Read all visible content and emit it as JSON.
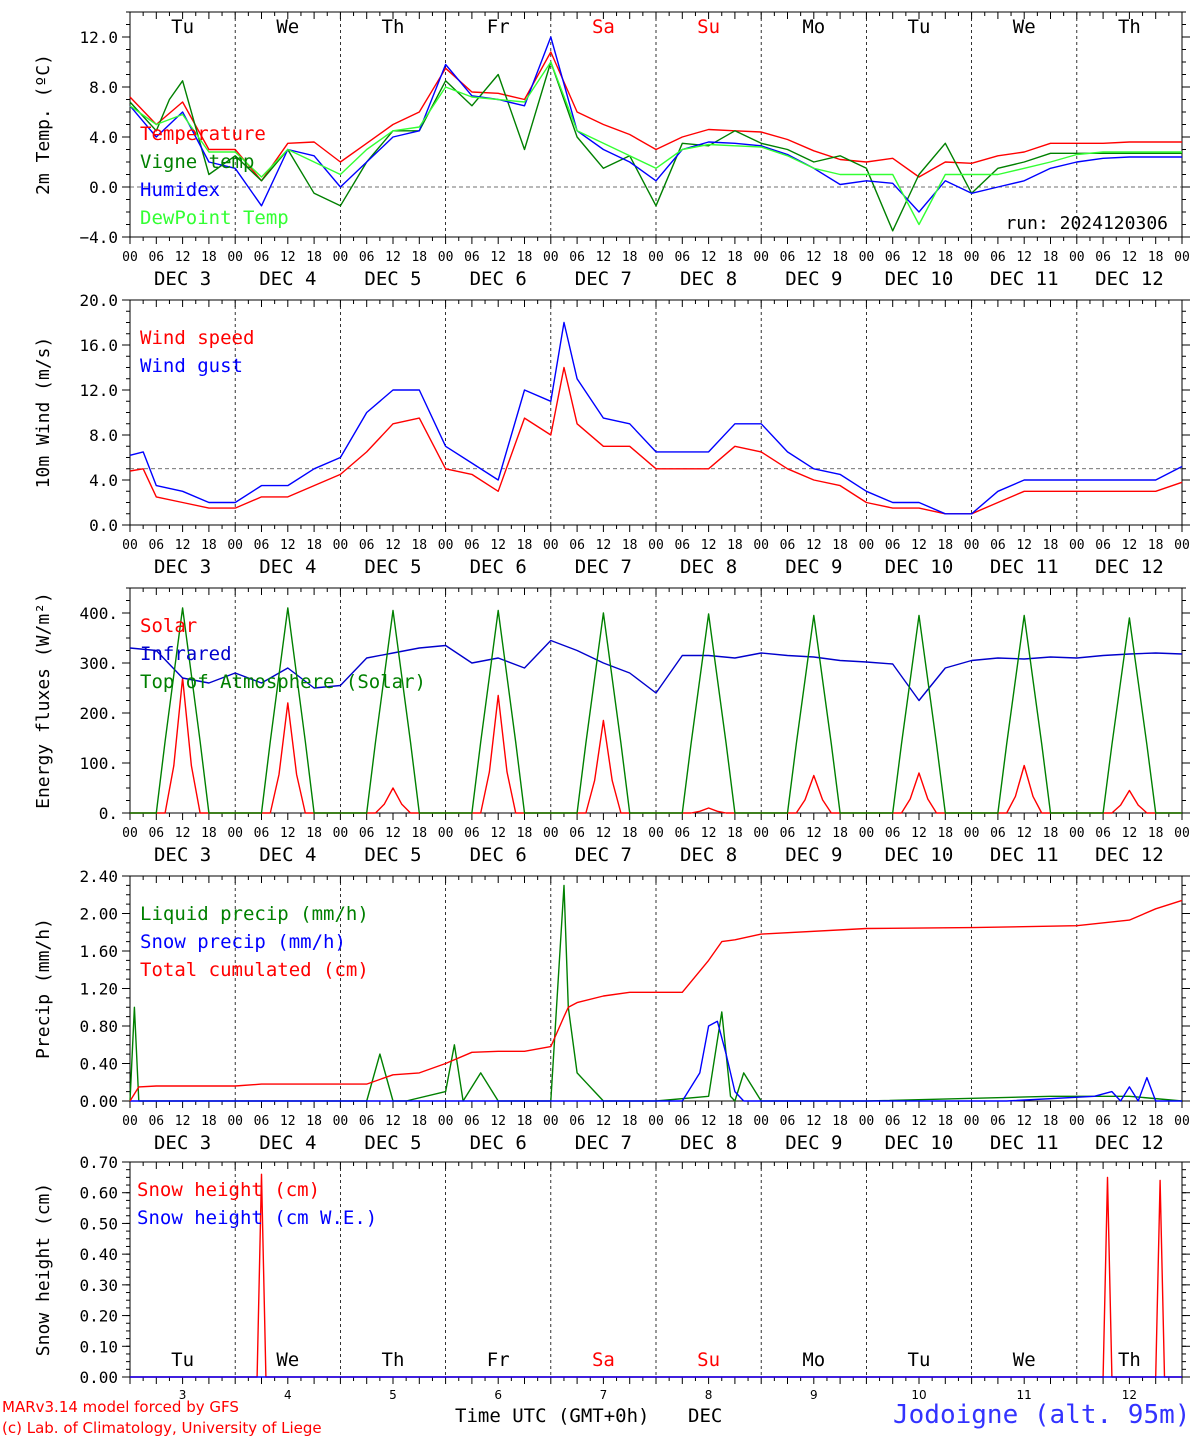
{
  "chart_data": [
    {
      "type": "line",
      "ylabel": "2m Temp. (ºC)",
      "ylim": [
        -4,
        14
      ],
      "yticks": [
        -4,
        0,
        4,
        8,
        12
      ],
      "ytick_labels": [
        "−4.0",
        "0.0",
        "4.0",
        "8.0",
        "12.0"
      ],
      "ref_line": 0,
      "x_unit": "hours since DEC 3 00 UTC",
      "weekday_labels_top": true,
      "annotation": "run: 2024120306",
      "series": [
        {
          "name": "Temperature",
          "color": "#ff0000",
          "x": [
            0,
            6,
            12,
            18,
            24,
            30,
            36,
            42,
            48,
            54,
            60,
            66,
            72,
            78,
            84,
            90,
            96,
            102,
            108,
            114,
            120,
            126,
            132,
            138,
            144,
            150,
            156,
            162,
            168,
            174,
            180,
            186,
            192,
            198,
            204,
            210,
            216,
            222,
            228,
            234,
            240
          ],
          "y": [
            7.2,
            5.0,
            6.8,
            3.0,
            3.0,
            0.5,
            3.5,
            3.6,
            2.0,
            3.5,
            5.0,
            6.0,
            9.5,
            7.6,
            7.5,
            7.0,
            10.8,
            6.0,
            5.0,
            4.2,
            3.0,
            4.0,
            4.6,
            4.5,
            4.4,
            3.8,
            2.9,
            2.2,
            2.0,
            2.3,
            0.8,
            2.0,
            1.9,
            2.5,
            2.8,
            3.5,
            3.5,
            3.5,
            3.6,
            3.6,
            3.6
          ]
        },
        {
          "name": "Vigne temp",
          "color": "#008000",
          "x": [
            0,
            6,
            9,
            12,
            18,
            24,
            30,
            36,
            42,
            48,
            54,
            60,
            66,
            72,
            78,
            84,
            90,
            96,
            102,
            108,
            114,
            120,
            126,
            132,
            138,
            144,
            150,
            156,
            162,
            168,
            174,
            180,
            186,
            192,
            198,
            204,
            210,
            216,
            222,
            228,
            234,
            240
          ],
          "y": [
            6.8,
            4.5,
            7.0,
            8.5,
            1.0,
            2.5,
            0.5,
            3.0,
            -0.5,
            -1.5,
            2.0,
            4.5,
            4.5,
            8.5,
            6.5,
            9.0,
            3.0,
            10.0,
            4.0,
            1.5,
            2.5,
            -1.5,
            3.5,
            3.3,
            4.5,
            3.5,
            3.0,
            2.0,
            2.5,
            1.5,
            -3.5,
            1.0,
            3.5,
            -0.5,
            1.5,
            2.0,
            2.7,
            2.7,
            2.7,
            2.7,
            2.7,
            2.7
          ]
        },
        {
          "name": "Humidex",
          "color": "#0000ff",
          "x": [
            0,
            6,
            12,
            18,
            24,
            30,
            36,
            42,
            48,
            54,
            60,
            66,
            72,
            78,
            84,
            90,
            96,
            102,
            108,
            114,
            120,
            126,
            132,
            138,
            144,
            150,
            156,
            162,
            168,
            174,
            180,
            186,
            192,
            198,
            204,
            210,
            216,
            222,
            228,
            234,
            240
          ],
          "y": [
            6.5,
            4.0,
            6.0,
            2.0,
            1.5,
            -1.5,
            3.0,
            2.5,
            0.0,
            2.0,
            4.0,
            4.5,
            9.8,
            7.3,
            7.0,
            6.5,
            12.0,
            4.5,
            3.0,
            2.0,
            0.5,
            3.0,
            3.6,
            3.5,
            3.3,
            2.6,
            1.5,
            0.2,
            0.5,
            0.3,
            -2.0,
            0.5,
            -0.5,
            0.0,
            0.5,
            1.5,
            2.0,
            2.3,
            2.4,
            2.4,
            2.4
          ]
        },
        {
          "name": "DewPoint Temp",
          "color": "#33ff33",
          "x": [
            0,
            6,
            12,
            18,
            24,
            30,
            36,
            42,
            48,
            54,
            60,
            66,
            72,
            78,
            84,
            90,
            96,
            102,
            108,
            114,
            120,
            126,
            132,
            138,
            144,
            150,
            156,
            162,
            168,
            174,
            180,
            186,
            192,
            198,
            204,
            210,
            216,
            222,
            228,
            234,
            240
          ],
          "y": [
            6.5,
            5.0,
            5.8,
            2.8,
            2.8,
            0.8,
            3.0,
            2.0,
            1.0,
            3.0,
            4.5,
            4.8,
            8.0,
            7.2,
            7.0,
            6.8,
            10.0,
            4.5,
            3.5,
            2.5,
            1.5,
            3.0,
            3.4,
            3.3,
            3.2,
            2.5,
            1.5,
            1.0,
            1.0,
            1.0,
            -3.0,
            1.0,
            1.0,
            1.0,
            1.5,
            2.0,
            2.6,
            2.8,
            2.8,
            2.8,
            2.8
          ]
        }
      ]
    },
    {
      "type": "line",
      "ylabel": "10m Wind (m/s)",
      "ylim": [
        0,
        20
      ],
      "yticks": [
        0,
        4,
        8,
        12,
        16,
        20
      ],
      "ytick_labels": [
        "0.0",
        "4.0",
        "8.0",
        "12.0",
        "16.0",
        "20.0"
      ],
      "ref_line": 5,
      "series": [
        {
          "name": "Wind speed",
          "color": "#ff0000",
          "x": [
            0,
            3,
            6,
            12,
            18,
            24,
            30,
            36,
            42,
            48,
            54,
            60,
            66,
            72,
            78,
            84,
            90,
            96,
            99,
            102,
            108,
            114,
            120,
            126,
            132,
            138,
            144,
            150,
            156,
            162,
            168,
            174,
            180,
            186,
            192,
            198,
            204,
            210,
            216,
            222,
            228,
            234,
            240
          ],
          "y": [
            4.8,
            5.0,
            2.5,
            2.0,
            1.5,
            1.5,
            2.5,
            2.5,
            3.5,
            4.5,
            6.5,
            9.0,
            9.5,
            5.0,
            4.5,
            3.0,
            9.5,
            8.0,
            14.0,
            9.0,
            7.0,
            7.0,
            5.0,
            5.0,
            5.0,
            7.0,
            6.5,
            5.0,
            4.0,
            3.5,
            2.0,
            1.5,
            1.5,
            1.0,
            1.0,
            2.0,
            3.0,
            3.0,
            3.0,
            3.0,
            3.0,
            3.0,
            3.8
          ]
        },
        {
          "name": "Wind gust",
          "color": "#0000ff",
          "x": [
            0,
            3,
            6,
            12,
            18,
            24,
            30,
            36,
            42,
            48,
            54,
            60,
            66,
            72,
            78,
            84,
            90,
            96,
            99,
            102,
            108,
            114,
            120,
            126,
            132,
            138,
            144,
            150,
            156,
            162,
            168,
            174,
            180,
            186,
            192,
            198,
            204,
            210,
            216,
            222,
            228,
            234,
            240
          ],
          "y": [
            6.2,
            6.5,
            3.5,
            3.0,
            2.0,
            2.0,
            3.5,
            3.5,
            5.0,
            6.0,
            10.0,
            12.0,
            12.0,
            7.0,
            5.5,
            4.0,
            12.0,
            11.0,
            18.0,
            13.0,
            9.5,
            9.0,
            6.5,
            6.5,
            6.5,
            9.0,
            9.0,
            6.5,
            5.0,
            4.5,
            3.0,
            2.0,
            2.0,
            1.0,
            1.0,
            3.0,
            4.0,
            4.0,
            4.0,
            4.0,
            4.0,
            4.0,
            5.2
          ]
        }
      ]
    },
    {
      "type": "line",
      "ylabel": "Energy fluxes (W/m²)",
      "ylim": [
        0,
        450
      ],
      "yticks": [
        0,
        100,
        200,
        300,
        400
      ],
      "ytick_labels": [
        "0.",
        "100.",
        "200.",
        "300.",
        "400."
      ],
      "series": [
        {
          "name": "Solar",
          "color": "#ff0000",
          "daily_peaks": [
            270,
            220,
            50,
            235,
            185,
            10,
            75,
            80,
            95,
            45
          ]
        },
        {
          "name": "Infrared",
          "color": "#0000cc",
          "x": [
            0,
            6,
            12,
            18,
            24,
            30,
            36,
            42,
            48,
            54,
            60,
            66,
            72,
            78,
            84,
            90,
            96,
            102,
            108,
            114,
            120,
            126,
            132,
            138,
            144,
            150,
            156,
            162,
            168,
            174,
            180,
            186,
            192,
            198,
            204,
            210,
            216,
            222,
            228,
            234,
            240
          ],
          "y": [
            330,
            325,
            270,
            260,
            280,
            260,
            290,
            250,
            255,
            310,
            320,
            330,
            335,
            300,
            310,
            290,
            345,
            325,
            300,
            280,
            240,
            315,
            315,
            310,
            320,
            315,
            312,
            305,
            302,
            298,
            225,
            290,
            305,
            310,
            308,
            312,
            310,
            315,
            318,
            320,
            318
          ]
        },
        {
          "name": "Top of Atmosphere (Solar)",
          "color": "#008000",
          "daily_peaks": [
            410,
            410,
            405,
            405,
            400,
            398,
            395,
            395,
            395,
            390
          ]
        }
      ]
    },
    {
      "type": "line",
      "ylabel": "Precip (mm/h)",
      "ylim": [
        0,
        2.4
      ],
      "yticks": [
        0,
        0.4,
        0.8,
        1.2,
        1.6,
        2.0,
        2.4
      ],
      "ytick_labels": [
        "0.00",
        "0.40",
        "0.80",
        "1.20",
        "1.60",
        "2.00",
        "2.40"
      ],
      "series": [
        {
          "name": "Liquid precip (mm/h)",
          "color": "#008000",
          "x": [
            0,
            1,
            2,
            4,
            6,
            24,
            54,
            57,
            60,
            63,
            72,
            74,
            76,
            80,
            84,
            96,
            99,
            100,
            102,
            104,
            106,
            108,
            114,
            120,
            132,
            135,
            137,
            138,
            140,
            144,
            150,
            156,
            168,
            210,
            228,
            240
          ],
          "y": [
            0,
            1.0,
            0,
            0,
            0,
            0,
            0,
            0.5,
            0,
            0,
            0.1,
            0.6,
            0,
            0.3,
            0,
            0,
            2.3,
            1.0,
            0.3,
            0.2,
            0.1,
            0,
            0,
            0,
            0.05,
            0.95,
            0.05,
            0,
            0.3,
            0,
            0,
            0,
            0,
            0.05,
            0.05,
            0
          ]
        },
        {
          "name": "Snow precip (mm/h)",
          "color": "#0000ff",
          "x": [
            0,
            126,
            130,
            132,
            134,
            136,
            138,
            140,
            144,
            200,
            220,
            224,
            226,
            228,
            230,
            232,
            234,
            236,
            240
          ],
          "y": [
            0,
            0,
            0.3,
            0.8,
            0.85,
            0.5,
            0.1,
            0,
            0,
            0,
            0.05,
            0.1,
            0,
            0.15,
            0,
            0.25,
            0,
            0,
            0
          ]
        },
        {
          "name": "Total cumulated (cm)",
          "color": "#ff0000",
          "x": [
            0,
            2,
            6,
            24,
            30,
            54,
            60,
            66,
            72,
            78,
            84,
            90,
            96,
            99,
            100,
            102,
            108,
            114,
            120,
            126,
            132,
            135,
            138,
            144,
            168,
            192,
            216,
            228,
            234,
            240
          ],
          "y": [
            0,
            0.15,
            0.16,
            0.16,
            0.18,
            0.18,
            0.28,
            0.3,
            0.4,
            0.52,
            0.53,
            0.53,
            0.58,
            0.9,
            1.0,
            1.05,
            1.12,
            1.16,
            1.16,
            1.16,
            1.5,
            1.7,
            1.72,
            1.78,
            1.84,
            1.85,
            1.87,
            1.93,
            2.05,
            2.14
          ]
        }
      ]
    },
    {
      "type": "line",
      "ylabel": "Snow height (cm)",
      "ylim": [
        0,
        0.7
      ],
      "yticks": [
        0,
        0.1,
        0.2,
        0.3,
        0.4,
        0.5,
        0.6,
        0.7
      ],
      "ytick_labels": [
        "0.00",
        "0.10",
        "0.20",
        "0.30",
        "0.40",
        "0.50",
        "0.60",
        "0.70"
      ],
      "weekday_labels_bottom": true,
      "series": [
        {
          "name": "Snow height (cm)",
          "color": "#ff0000",
          "x": [
            0,
            29,
            30,
            31,
            222,
            223,
            224,
            234,
            235,
            236,
            240
          ],
          "y": [
            0,
            0,
            0.66,
            0,
            0,
            0.65,
            0,
            0,
            0.64,
            0,
            0
          ]
        },
        {
          "name": "Snow height (cm W.E.)",
          "color": "#0000ff",
          "x": [
            0,
            240
          ],
          "y": [
            0,
            0
          ]
        }
      ]
    }
  ],
  "weekdays": [
    {
      "label": "Tu",
      "color": "#000000"
    },
    {
      "label": "We",
      "color": "#000000"
    },
    {
      "label": "Th",
      "color": "#000000"
    },
    {
      "label": "Fr",
      "color": "#000000"
    },
    {
      "label": "Sa",
      "color": "#ff0000"
    },
    {
      "label": "Su",
      "color": "#ff0000"
    },
    {
      "label": "Mo",
      "color": "#000000"
    },
    {
      "label": "Tu",
      "color": "#000000"
    },
    {
      "label": "We",
      "color": "#000000"
    },
    {
      "label": "Th",
      "color": "#000000"
    }
  ],
  "hour_ticks": [
    "00",
    "06",
    "12",
    "18"
  ],
  "hour_tick_end": "00",
  "date_labels": [
    "DEC  3",
    "DEC  4",
    "DEC  5",
    "DEC  6",
    "DEC  7",
    "DEC  8",
    "DEC  9",
    "DEC 10",
    "DEC 11",
    "DEC 12"
  ],
  "bottom_day_numbers": [
    "3",
    "4",
    "5",
    "6",
    "7",
    "8",
    "9",
    "10",
    "11",
    "12"
  ],
  "footer": {
    "credit_line1": "MARv3.14 model forced by GFS",
    "credit_line2": "(c) Lab. of Climatology, University of Liege",
    "xlabel": "Time UTC (GMT+0h)",
    "xlabel_month": "DEC",
    "station": "Jodoigne (alt. 95m)"
  },
  "colors": {
    "credit": "#ff0000",
    "station": "#3333ff",
    "axis": "#000000"
  }
}
